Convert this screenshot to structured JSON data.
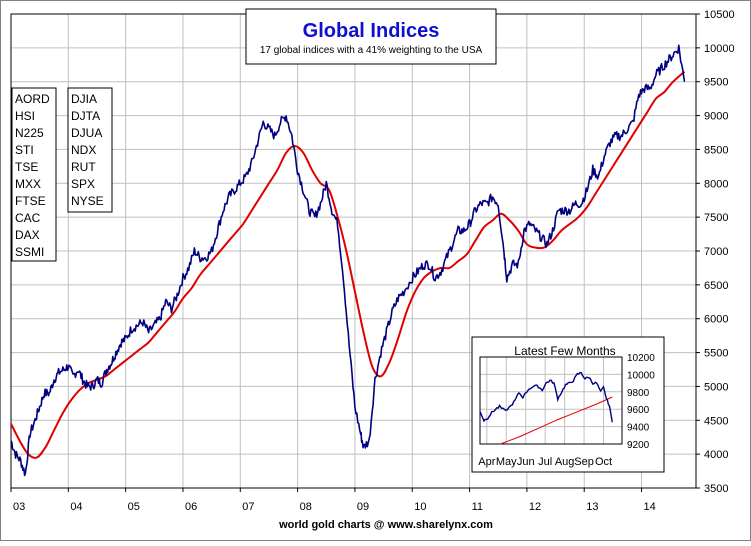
{
  "chart_data": [
    {
      "type": "line",
      "title": "Global Indices",
      "subtitle": "17 global indices with a 41% weighting to the USA",
      "footer": "world gold charts @ www.sharelynx.com",
      "x_tick_labels": [
        "03",
        "04",
        "05",
        "06",
        "07",
        "08",
        "09",
        "10",
        "11",
        "12",
        "13",
        "14"
      ],
      "y_tick_labels": [
        "3500",
        "4000",
        "4500",
        "5000",
        "5500",
        "6000",
        "6500",
        "7000",
        "7500",
        "8000",
        "8500",
        "9000",
        "9500",
        "10000",
        "10500"
      ],
      "xlim": [
        2003.0,
        2014.95
      ],
      "ylim": [
        3500,
        10500
      ],
      "y_axis_side": "right",
      "grid": true,
      "legend_col1": [
        "AORD",
        "HSI",
        "N225",
        "STI",
        "TSE",
        "MXX",
        "FTSE",
        "CAC",
        "DAX",
        "SSMI"
      ],
      "legend_col2": [
        "DJIA",
        "DJTA",
        "DJUA",
        "NDX",
        "RUT",
        "SPX",
        "NYSE"
      ],
      "colors": {
        "index": "#000080",
        "average": "#e00000",
        "grid": "#c0c0c0",
        "title": "#1010d0"
      },
      "series": [
        {
          "x": [
            2003.0,
            2003.08,
            2003.17,
            2003.25,
            2003.33,
            2003.42,
            2003.5,
            2003.58,
            2003.67,
            2003.75,
            2003.83,
            2003.92,
            2004.0,
            2004.08,
            2004.17,
            2004.25,
            2004.33,
            2004.42,
            2004.5,
            2004.58,
            2004.67,
            2004.75,
            2004.83,
            2004.92,
            2005.0,
            2005.1,
            2005.2,
            2005.3,
            2005.4,
            2005.5,
            2005.6,
            2005.7,
            2005.8,
            2005.9,
            2006.0,
            2006.1,
            2006.2,
            2006.3,
            2006.4,
            2006.5,
            2006.6,
            2006.7,
            2006.8,
            2006.9,
            2007.0,
            2007.1,
            2007.2,
            2007.3,
            2007.4,
            2007.5,
            2007.6,
            2007.7,
            2007.8,
            2007.9,
            2008.0,
            2008.1,
            2008.2,
            2008.3,
            2008.4,
            2008.5,
            2008.6,
            2008.7,
            2008.8,
            2008.9,
            2009.0,
            2009.1,
            2009.15,
            2009.25,
            2009.35,
            2009.45,
            2009.55,
            2009.65,
            2009.75,
            2009.85,
            2010.0,
            2010.1,
            2010.2,
            2010.3,
            2010.4,
            2010.5,
            2010.6,
            2010.7,
            2010.8,
            2010.9,
            2011.0,
            2011.1,
            2011.2,
            2011.3,
            2011.4,
            2011.5,
            2011.6,
            2011.65,
            2011.75,
            2011.85,
            2011.95,
            2012.05,
            2012.15,
            2012.25,
            2012.35,
            2012.45,
            2012.55,
            2012.65,
            2012.75,
            2012.85,
            2012.95,
            2013.05,
            2013.15,
            2013.25,
            2013.35,
            2013.45,
            2013.55,
            2013.65,
            2013.75,
            2013.85,
            2013.95,
            2014.05,
            2014.15,
            2014.25,
            2014.35,
            2014.45,
            2014.55,
            2014.65,
            2014.75
          ],
          "values": [
            4200,
            4000,
            3900,
            3700,
            4300,
            4500,
            4700,
            4900,
            4900,
            5100,
            5200,
            5250,
            5300,
            5150,
            5250,
            5100,
            5000,
            5000,
            5100,
            5050,
            5250,
            5350,
            5500,
            5650,
            5700,
            5850,
            5900,
            5950,
            5800,
            5900,
            6000,
            6250,
            6150,
            6350,
            6600,
            6750,
            7000,
            6900,
            6900,
            7000,
            7300,
            7600,
            7800,
            7900,
            8000,
            8100,
            8300,
            8600,
            8900,
            8800,
            8700,
            8900,
            9000,
            8700,
            8200,
            7900,
            7600,
            7500,
            7700,
            8000,
            7600,
            7400,
            6600,
            5600,
            4700,
            4300,
            4100,
            4200,
            5100,
            5500,
            5800,
            6100,
            6300,
            6400,
            6600,
            6700,
            6800,
            6800,
            6600,
            6700,
            6900,
            7100,
            7300,
            7300,
            7400,
            7600,
            7700,
            7700,
            7800,
            7700,
            7000,
            6600,
            6800,
            6800,
            7300,
            7400,
            7300,
            7200,
            7100,
            7300,
            7600,
            7600,
            7600,
            7700,
            7700,
            7900,
            8200,
            8100,
            8400,
            8600,
            8700,
            8700,
            8800,
            8900,
            9300,
            9400,
            9400,
            9600,
            9700,
            9800,
            9900,
            10000,
            9500
          ]
        },
        {
          "x": [
            2003.0,
            2003.15,
            2003.3,
            2003.45,
            2003.6,
            2003.75,
            2003.9,
            2004.05,
            2004.2,
            2004.35,
            2004.5,
            2004.65,
            2004.8,
            2004.95,
            2005.1,
            2005.25,
            2005.4,
            2005.55,
            2005.7,
            2005.85,
            2006.0,
            2006.15,
            2006.3,
            2006.45,
            2006.6,
            2006.75,
            2006.9,
            2007.05,
            2007.2,
            2007.35,
            2007.5,
            2007.65,
            2007.8,
            2007.95,
            2008.1,
            2008.25,
            2008.4,
            2008.55,
            2008.7,
            2008.85,
            2009.0,
            2009.15,
            2009.3,
            2009.45,
            2009.6,
            2009.75,
            2009.9,
            2010.05,
            2010.2,
            2010.35,
            2010.5,
            2010.65,
            2010.8,
            2010.95,
            2011.1,
            2011.25,
            2011.4,
            2011.55,
            2011.7,
            2011.85,
            2012.0,
            2012.15,
            2012.3,
            2012.45,
            2012.6,
            2012.75,
            2012.9,
            2013.05,
            2013.2,
            2013.35,
            2013.5,
            2013.65,
            2013.8,
            2013.95,
            2014.1,
            2014.25,
            2014.4,
            2014.55,
            2014.75
          ],
          "values": [
            4450,
            4200,
            4000,
            3950,
            4100,
            4350,
            4600,
            4800,
            4950,
            5050,
            5100,
            5150,
            5250,
            5350,
            5450,
            5550,
            5650,
            5800,
            5950,
            6100,
            6300,
            6450,
            6650,
            6800,
            6950,
            7100,
            7250,
            7400,
            7600,
            7800,
            8000,
            8200,
            8450,
            8550,
            8450,
            8200,
            8000,
            7900,
            7500,
            7000,
            6400,
            5800,
            5300,
            5150,
            5350,
            5700,
            6100,
            6400,
            6600,
            6700,
            6750,
            6750,
            6850,
            6950,
            7150,
            7350,
            7450,
            7550,
            7450,
            7300,
            7100,
            7050,
            7050,
            7150,
            7300,
            7400,
            7500,
            7650,
            7850,
            8050,
            8250,
            8450,
            8650,
            8850,
            9050,
            9250,
            9350,
            9500,
            9650
          ]
        }
      ]
    },
    {
      "type": "line",
      "title": "Latest Few Months",
      "x_tick_labels": [
        "Apr",
        "May",
        "Jun",
        "Jul",
        "Aug",
        "Sep",
        "Oct"
      ],
      "y_tick_labels": [
        "9200",
        "9400",
        "9600",
        "9800",
        "10000",
        "10200"
      ],
      "xlim": [
        0,
        7.3
      ],
      "ylim": [
        9200,
        10200
      ],
      "y_axis_side": "right",
      "grid": true,
      "series": [
        {
          "x": [
            0.0,
            0.2,
            0.4,
            0.6,
            0.8,
            1.0,
            1.3,
            1.6,
            1.8,
            2.0,
            2.2,
            2.5,
            2.8,
            3.0,
            3.2,
            3.4,
            3.6,
            3.8,
            4.0,
            4.2,
            4.4,
            4.6,
            4.8,
            5.0,
            5.2,
            5.4,
            5.6,
            5.8,
            6.0,
            6.2,
            6.35,
            6.5,
            6.65,
            6.8
          ],
          "values": [
            9580,
            9470,
            9500,
            9560,
            9600,
            9630,
            9580,
            9640,
            9700,
            9790,
            9740,
            9830,
            9870,
            9860,
            9820,
            9900,
            9930,
            9900,
            9720,
            9800,
            9880,
            9900,
            9930,
            10000,
            10020,
            9950,
            9970,
            9900,
            9900,
            9800,
            9850,
            9720,
            9640,
            9450
          ]
        },
        {
          "x": [
            1.05,
            2.0,
            3.0,
            4.0,
            5.0,
            6.0,
            6.8
          ],
          "values": [
            9200,
            9280,
            9380,
            9480,
            9570,
            9660,
            9740
          ]
        }
      ]
    }
  ]
}
